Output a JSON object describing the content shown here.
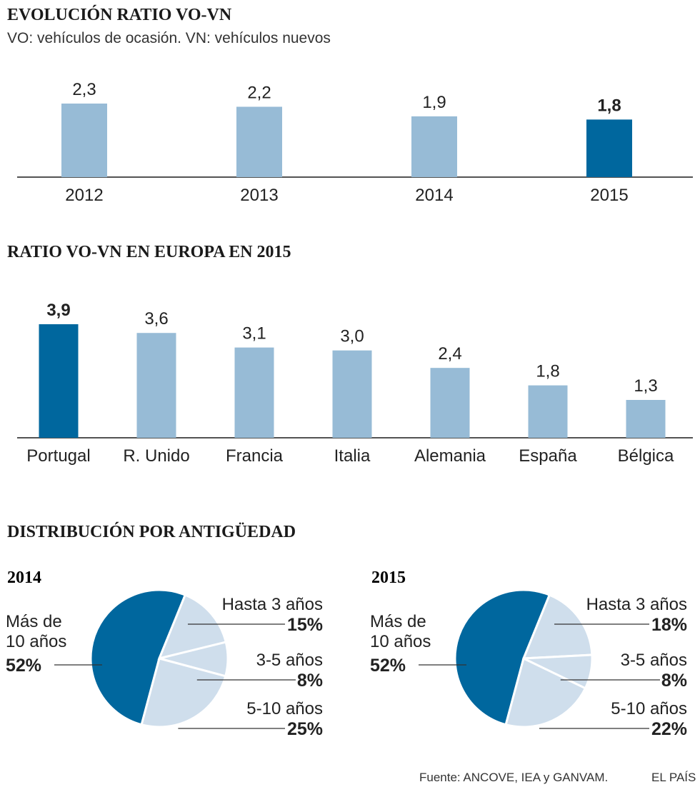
{
  "colors": {
    "highlight": "#00679e",
    "bar": "#97bbd6",
    "slice_old": "#00679e",
    "slice_young": "#cfdeec",
    "axis": "#1a1a1a"
  },
  "section1": {
    "title": "EVOLUCIÓN RATIO VO-VN",
    "subtitle": "VO: vehículos de ocasión. VN: vehículos nuevos"
  },
  "section2": {
    "title": "RATIO VO-VN EN EUROPA EN 2015"
  },
  "section3": {
    "title": "DISTRIBUCIÓN POR ANTIGÜEDAD"
  },
  "chart_data": [
    {
      "type": "bar",
      "title": "EVOLUCIÓN RATIO VO-VN",
      "subtitle": "VO: vehículos de ocasión. VN: vehículos nuevos",
      "categories": [
        "2012",
        "2013",
        "2014",
        "2015"
      ],
      "values": [
        2.3,
        2.2,
        1.9,
        1.8
      ],
      "labels": [
        "2,3",
        "2,2",
        "1,9",
        "1,8"
      ],
      "highlight_index": 3,
      "ylim": [
        0,
        2.3
      ]
    },
    {
      "type": "bar",
      "title": "RATIO VO-VN EN EUROPA EN 2015",
      "categories": [
        "Portugal",
        "R. Unido",
        "Francia",
        "Italia",
        "Alemania",
        "España",
        "Bélgica"
      ],
      "values": [
        3.9,
        3.6,
        3.1,
        3.0,
        2.4,
        1.8,
        1.3
      ],
      "labels": [
        "3,9",
        "3,6",
        "3,1",
        "3,0",
        "2,4",
        "1,8",
        "1,3"
      ],
      "highlight_index": 0,
      "ylim": [
        0,
        3.9
      ]
    },
    {
      "type": "pie",
      "title": "2014",
      "slices": [
        {
          "label": "Más de 10 años",
          "line1": "Más de",
          "line2": "10 años",
          "value": 52,
          "pct": "52%"
        },
        {
          "label": "Hasta 3 años",
          "value": 15,
          "pct": "15%"
        },
        {
          "label": "3-5 años",
          "value": 8,
          "pct": "8%"
        },
        {
          "label": "5-10 años",
          "value": 25,
          "pct": "25%"
        }
      ]
    },
    {
      "type": "pie",
      "title": "2015",
      "slices": [
        {
          "label": "Más de 10 años",
          "line1": "Más de",
          "line2": "10 años",
          "value": 52,
          "pct": "52%"
        },
        {
          "label": "Hasta 3 años",
          "value": 18,
          "pct": "18%"
        },
        {
          "label": "3-5 años",
          "value": 8,
          "pct": "8%"
        },
        {
          "label": "5-10 años",
          "value": 22,
          "pct": "22%"
        }
      ]
    }
  ],
  "footer": {
    "source": "Fuente: ANCOVE, IEA y GANVAM.",
    "brand": "EL PAÍS"
  }
}
